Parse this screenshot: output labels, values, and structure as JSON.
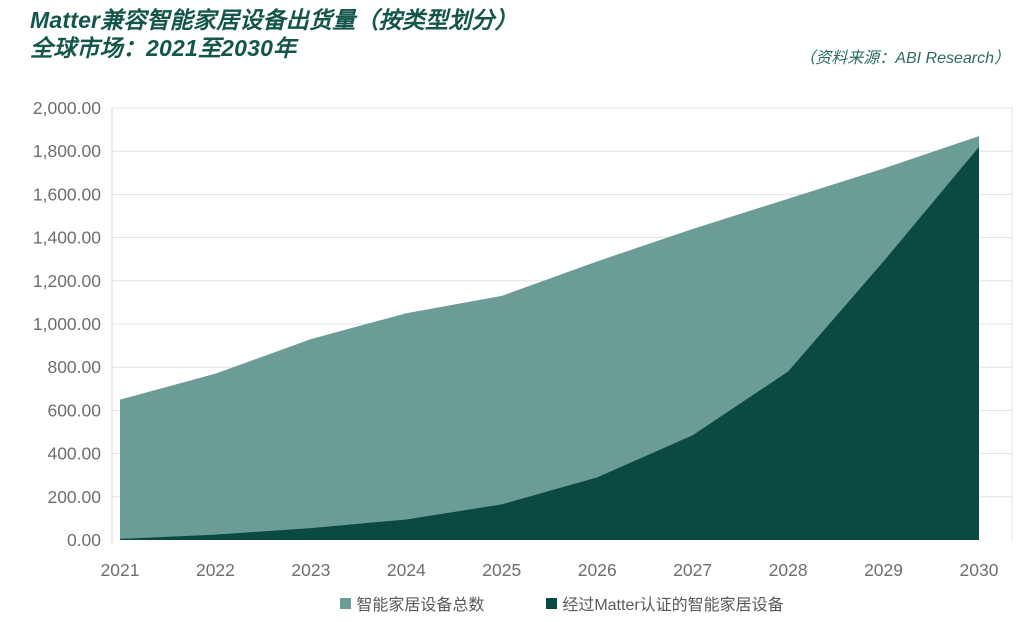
{
  "header": {
    "title_line1": "Matter兼容智能家居设备出货量（按类型划分）",
    "title_line2": "全球市场：2021至2030年",
    "source": "（资料来源：ABI Research）"
  },
  "chart_data": {
    "type": "area",
    "stacked": false,
    "title": "Matter兼容智能家居设备出货量（按类型划分）全球市场：2021至2030年",
    "source": "ABI Research",
    "categories": [
      "2021",
      "2022",
      "2023",
      "2024",
      "2025",
      "2026",
      "2027",
      "2028",
      "2029",
      "2030"
    ],
    "series": [
      {
        "name": "智能家居设备总数",
        "color": "#6C9C96",
        "values": [
          650,
          770,
          930,
          1050,
          1130,
          1290,
          1440,
          1580,
          1720,
          1870
        ]
      },
      {
        "name": "经过Matter认证的智能家居设备",
        "color": "#0B4A43",
        "values": [
          5,
          25,
          55,
          95,
          165,
          290,
          485,
          780,
          1290,
          1820
        ]
      }
    ],
    "xlabel": "",
    "ylabel": "",
    "ylim": [
      0,
      2000
    ],
    "y_tick_step": 200,
    "y_tick_labels": [
      "0.00",
      "200.00",
      "400.00",
      "600.00",
      "800.00",
      "1,000.00",
      "1,200.00",
      "1,400.00",
      "1,600.00",
      "1,800.00",
      "2,000.00"
    ],
    "grid": "horizontal",
    "legend_position": "bottom",
    "colors": {
      "gridline": "#E3E3E3",
      "axis_line": "#D6D6D6",
      "tick_label": "#6E6E6E",
      "legend_text": "#595959"
    }
  }
}
